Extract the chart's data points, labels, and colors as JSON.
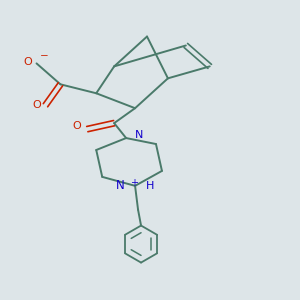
{
  "background_color": "#dde5e8",
  "bond_color": "#4a7a6a",
  "O_color": "#cc2200",
  "N_color": "#1100cc",
  "figsize": [
    3.0,
    3.0
  ],
  "dpi": 100,
  "xlim": [
    0,
    10
  ],
  "ylim": [
    0,
    10
  ]
}
